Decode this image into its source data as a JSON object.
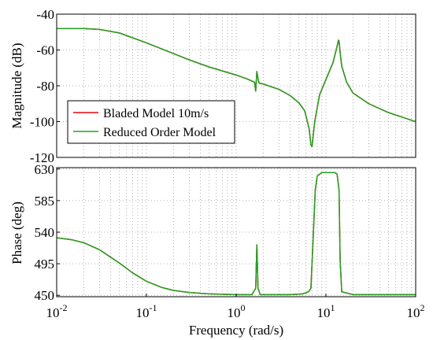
{
  "chart_data": [
    {
      "type": "line",
      "panel": "magnitude",
      "xscale": "log",
      "xlim": [
        0.01,
        100
      ],
      "ylim": [
        -120,
        -40
      ],
      "yticks": [
        -40,
        -60,
        -80,
        -100,
        -120
      ],
      "ylabel": "Magnitude (dB)",
      "grid": true,
      "legend": {
        "placement": "bottom-left",
        "entries": [
          "Bladed Model 10m/s",
          "Reduced Order Model"
        ]
      },
      "series": [
        {
          "name": "Bladed Model 10m/s",
          "color": "#e8000b",
          "x": [
            0.01,
            0.02,
            0.03,
            0.05,
            0.1,
            0.2,
            0.3,
            0.5,
            1,
            1.3,
            1.6,
            1.65,
            1.7,
            1.75,
            1.8,
            2,
            3,
            4,
            5,
            5.8,
            6.5,
            6.8,
            7,
            7.5,
            8.5,
            10,
            12,
            13.3,
            13.8,
            14,
            14.3,
            15,
            17,
            20,
            30,
            50,
            100
          ],
          "y": [
            -48,
            -48,
            -48.5,
            -50.5,
            -56,
            -62,
            -65.5,
            -69.5,
            -74,
            -76,
            -78,
            -83,
            -72,
            -76,
            -78.5,
            -79,
            -82,
            -85.5,
            -89.5,
            -94,
            -104,
            -113,
            -114,
            -100,
            -85,
            -76.5,
            -67,
            -58,
            -54.5,
            -55,
            -60,
            -69,
            -78,
            -84,
            -90,
            -95,
            -100
          ]
        },
        {
          "name": "Reduced Order Model",
          "color": "#21a321",
          "x": [
            0.01,
            0.02,
            0.03,
            0.05,
            0.1,
            0.2,
            0.3,
            0.5,
            1,
            1.3,
            1.6,
            1.65,
            1.7,
            1.75,
            1.8,
            2,
            3,
            4,
            5,
            5.8,
            6.5,
            6.8,
            7,
            7.5,
            8.5,
            10,
            12,
            13.3,
            13.8,
            14,
            14.3,
            15,
            17,
            20,
            30,
            50,
            100
          ],
          "y": [
            -48,
            -48,
            -48.5,
            -50.5,
            -56,
            -62,
            -65.5,
            -69.5,
            -74,
            -76,
            -78,
            -83,
            -72,
            -76,
            -78.5,
            -79,
            -82,
            -85.5,
            -89.5,
            -94,
            -104,
            -113,
            -114,
            -100,
            -85,
            -76.5,
            -67,
            -58,
            -54.5,
            -55,
            -60,
            -69,
            -78,
            -84,
            -90,
            -95,
            -100
          ]
        }
      ]
    },
    {
      "type": "line",
      "panel": "phase",
      "xscale": "log",
      "xlim": [
        0.01,
        100
      ],
      "ylim": [
        448,
        632
      ],
      "yticks": [
        450,
        495,
        540,
        585,
        630
      ],
      "xticks": [
        "10^-2",
        "10^-1",
        "10^0",
        "10^1",
        "10^2"
      ],
      "xlabel": "Frequency (rad/s)",
      "ylabel": "Phase (deg)",
      "grid": true,
      "series": [
        {
          "name": "Bladed Model 10m/s",
          "color": "#e8000b",
          "x": [
            0.01,
            0.015,
            0.02,
            0.03,
            0.05,
            0.07,
            0.1,
            0.15,
            0.2,
            0.3,
            0.5,
            1,
            1.5,
            1.65,
            1.7,
            1.75,
            1.85,
            2.5,
            4,
            5.5,
            6.4,
            6.8,
            7.2,
            7.6,
            8,
            9,
            11,
            12.5,
            13.3,
            14,
            14.4,
            15,
            20,
            40,
            100
          ],
          "y": [
            532,
            529,
            525,
            515,
            496,
            482,
            470,
            461,
            457,
            454,
            452,
            451,
            451,
            460,
            522,
            460,
            451,
            451,
            451,
            452,
            455,
            460,
            530,
            600,
            620,
            625,
            625,
            625,
            623,
            600,
            500,
            455,
            451,
            451,
            451
          ]
        },
        {
          "name": "Reduced Order Model",
          "color": "#21a321",
          "x": [
            0.01,
            0.015,
            0.02,
            0.03,
            0.05,
            0.07,
            0.1,
            0.15,
            0.2,
            0.3,
            0.5,
            1,
            1.5,
            1.65,
            1.7,
            1.75,
            1.85,
            2.5,
            4,
            5.5,
            6.4,
            6.8,
            7.2,
            7.6,
            8,
            9,
            11,
            12.5,
            13.3,
            14,
            14.4,
            15,
            20,
            40,
            100
          ],
          "y": [
            532,
            529,
            525,
            515,
            496,
            482,
            470,
            461,
            457,
            454,
            452,
            451,
            451,
            460,
            522,
            460,
            451,
            451,
            451,
            452,
            455,
            460,
            530,
            600,
            620,
            625,
            625,
            625,
            623,
            600,
            500,
            455,
            451,
            451,
            451
          ]
        }
      ]
    }
  ]
}
